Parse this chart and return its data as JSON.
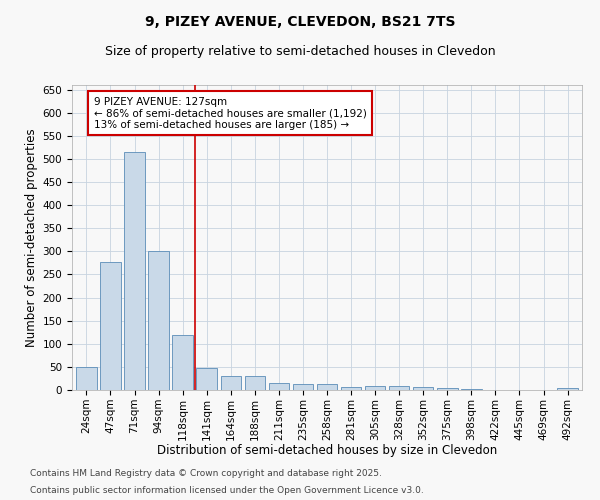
{
  "title": "9, PIZEY AVENUE, CLEVEDON, BS21 7TS",
  "subtitle": "Size of property relative to semi-detached houses in Clevedon",
  "xlabel": "Distribution of semi-detached houses by size in Clevedon",
  "ylabel": "Number of semi-detached properties",
  "categories": [
    "24sqm",
    "47sqm",
    "71sqm",
    "94sqm",
    "118sqm",
    "141sqm",
    "164sqm",
    "188sqm",
    "211sqm",
    "235sqm",
    "258sqm",
    "281sqm",
    "305sqm",
    "328sqm",
    "352sqm",
    "375sqm",
    "398sqm",
    "422sqm",
    "445sqm",
    "469sqm",
    "492sqm"
  ],
  "values": [
    50,
    278,
    515,
    300,
    118,
    47,
    30,
    30,
    15,
    12,
    13,
    6,
    8,
    8,
    6,
    5,
    3,
    1,
    1,
    0,
    4
  ],
  "bar_color": "#c9d9e8",
  "bar_edge_color": "#5b8db8",
  "annotation_text": "9 PIZEY AVENUE: 127sqm\n← 86% of semi-detached houses are smaller (1,192)\n13% of semi-detached houses are larger (185) →",
  "annotation_box_color": "#ffffff",
  "annotation_box_edge": "#cc0000",
  "vline_color": "#cc0000",
  "ylim": [
    0,
    660
  ],
  "yticks": [
    0,
    50,
    100,
    150,
    200,
    250,
    300,
    350,
    400,
    450,
    500,
    550,
    600,
    650
  ],
  "footnote1": "Contains HM Land Registry data © Crown copyright and database right 2025.",
  "footnote2": "Contains public sector information licensed under the Open Government Licence v3.0.",
  "bg_color": "#f8f8f8",
  "grid_color": "#c8d4e0",
  "title_fontsize": 10,
  "subtitle_fontsize": 9,
  "axis_label_fontsize": 8.5,
  "tick_fontsize": 7.5,
  "annotation_fontsize": 7.5,
  "footnote_fontsize": 6.5
}
